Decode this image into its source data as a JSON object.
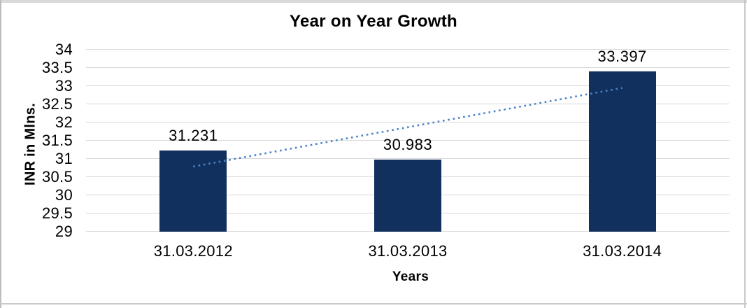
{
  "frame": {
    "background": "#ffffff",
    "border_color": "#c9c9c9",
    "top_band_color": "#d9d9d9"
  },
  "chart_data": {
    "type": "bar",
    "title": "Year on Year Growth",
    "xlabel": "Years",
    "ylabel": "INR in Mlns.",
    "categories": [
      "31.03.2012",
      "31.03.2013",
      "31.03.2014"
    ],
    "values": [
      31.231,
      30.983,
      33.397
    ],
    "data_labels": [
      "31.231",
      "30.983",
      "33.397"
    ],
    "ylim": [
      29,
      34
    ],
    "ytick_step": 0.5,
    "ytick_labels": [
      "29",
      "29.5",
      "30",
      "30.5",
      "31",
      "31.5",
      "32",
      "32.5",
      "33",
      "33.5",
      "34"
    ],
    "grid": true,
    "legend": false,
    "colors": {
      "bar": "#12305e",
      "gridline": "#d9d9d9",
      "text": "#000000",
      "trendline": "#4a82c6"
    },
    "trendline": {
      "type": "linear",
      "style": "dotted",
      "start_value": 30.79,
      "end_value": 32.95
    }
  }
}
